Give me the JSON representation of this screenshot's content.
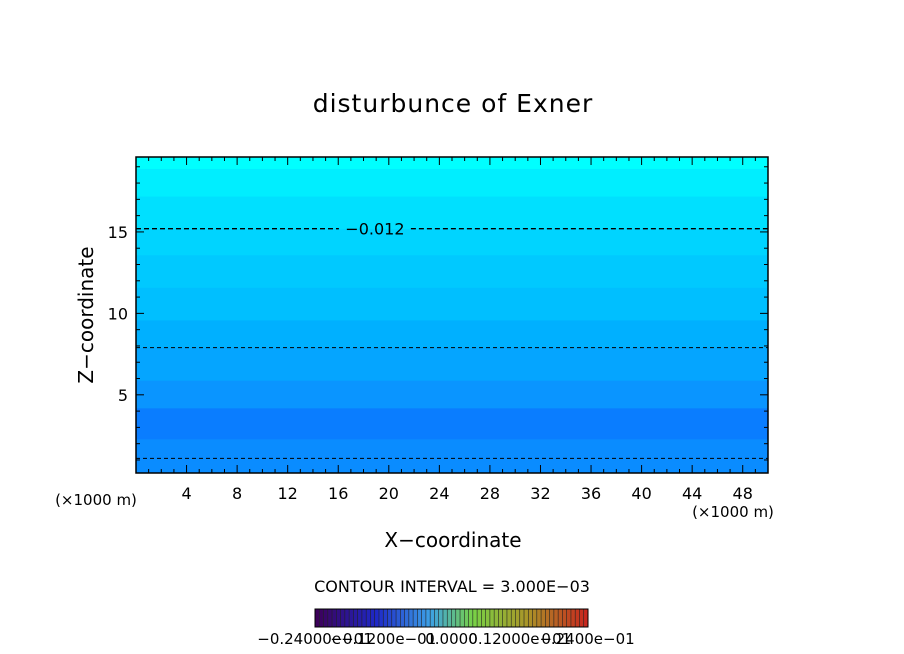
{
  "chart_data": {
    "type": "contour",
    "title": "disturbunce of Exner",
    "xlabel": "X−coordinate",
    "ylabel": "Z−coordinate",
    "x_unit": "(×1000 m)",
    "x_unit_right": "(×1000 m)",
    "xlim": [
      0,
      50
    ],
    "ylim": [
      0.2,
      19.6
    ],
    "x_ticks": [
      4,
      8,
      12,
      16,
      20,
      24,
      28,
      32,
      36,
      40,
      44,
      48
    ],
    "y_ticks": [
      5,
      10,
      15
    ],
    "contour_interval_label": "CONTOUR INTERVAL = 3.000E−03",
    "contour_lines": [
      {
        "z": 15.2,
        "label": "−0.012",
        "label_x": 18.9
      },
      {
        "z": 7.9,
        "label": ""
      },
      {
        "z": 1.1,
        "label": ""
      }
    ],
    "fill_bands": [
      {
        "z_bottom": 0.2,
        "z_top": 2.3,
        "color": "#0a8cff"
      },
      {
        "z_bottom": 2.3,
        "z_top": 4.2,
        "color": "#0a7dff"
      },
      {
        "z_bottom": 4.2,
        "z_top": 5.9,
        "color": "#0a95ff"
      },
      {
        "z_bottom": 5.9,
        "z_top": 7.9,
        "color": "#05a5ff"
      },
      {
        "z_bottom": 7.9,
        "z_top": 9.6,
        "color": "#00b0ff"
      },
      {
        "z_bottom": 9.6,
        "z_top": 11.6,
        "color": "#00bfff"
      },
      {
        "z_bottom": 11.6,
        "z_top": 13.6,
        "color": "#00c9ff"
      },
      {
        "z_bottom": 13.6,
        "z_top": 15.2,
        "color": "#00d4ff"
      },
      {
        "z_bottom": 15.2,
        "z_top": 17.2,
        "color": "#00e0ff"
      },
      {
        "z_bottom": 17.2,
        "z_top": 18.9,
        "color": "#00eeff"
      },
      {
        "z_bottom": 18.9,
        "z_top": 19.6,
        "color": "#00ffff"
      }
    ],
    "colorbar": {
      "tick_labels": [
        "−0.24000e−01",
        "−0.1200e−01",
        "0.0000",
        "0.12000e−01",
        "0.2400e−01"
      ]
    }
  }
}
